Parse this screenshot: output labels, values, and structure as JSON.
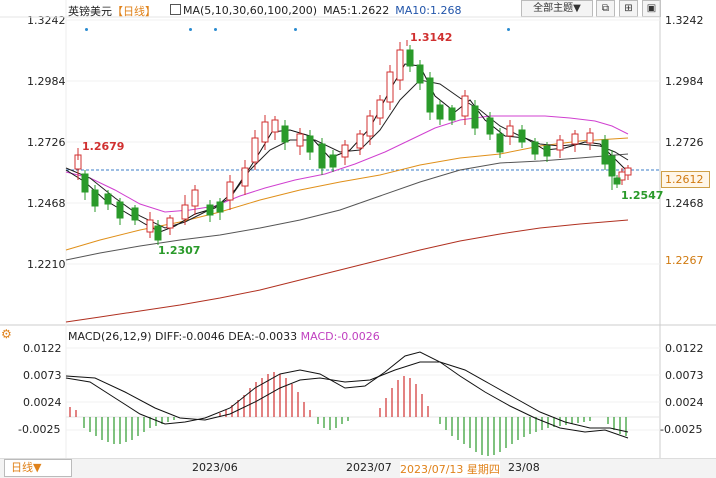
{
  "header": {
    "symbol": "英镑美元",
    "period": "【日线】",
    "ma_label": "MA(5,10,30,60,100,200)",
    "ma5": "MA5:1.2622",
    "ma10": "MA10:1.268",
    "topic_button": "全部主题▼"
  },
  "window_buttons": [
    "⧉",
    "⊞",
    "▣"
  ],
  "price_axis": {
    "ticks": [
      "1.3242",
      "1.2984",
      "1.2726",
      "1.2468",
      "1.2210"
    ],
    "current_price": "1.2612",
    "lower_value": "1.2267"
  },
  "annotations": {
    "high_label": "1.3142",
    "left_label": "1.2679",
    "low_label": "1.2307",
    "right_low_label": "1.2547"
  },
  "macd": {
    "header": "MACD(26,12,9)",
    "diff": "DIFF:-0.0046",
    "dea": "DEA:-0.0033",
    "macd_value": "MACD:-0.0026",
    "ticks": [
      "0.0122",
      "0.0073",
      "0.0024",
      "-0.0025"
    ]
  },
  "bottom": {
    "period_button": "日线▼",
    "date_labels": [
      "2023/06",
      "2023/07",
      "23/08"
    ],
    "tooltip": "2023/07/13  星期四"
  },
  "colors": {
    "up": "#d03030",
    "down": "#2a9a2a",
    "ma5": "#111111",
    "ma10": "#111111",
    "ma30": "#d040d0",
    "ma60": "#e0901a",
    "ma100": "#555555",
    "ma200": "#b03020"
  }
}
